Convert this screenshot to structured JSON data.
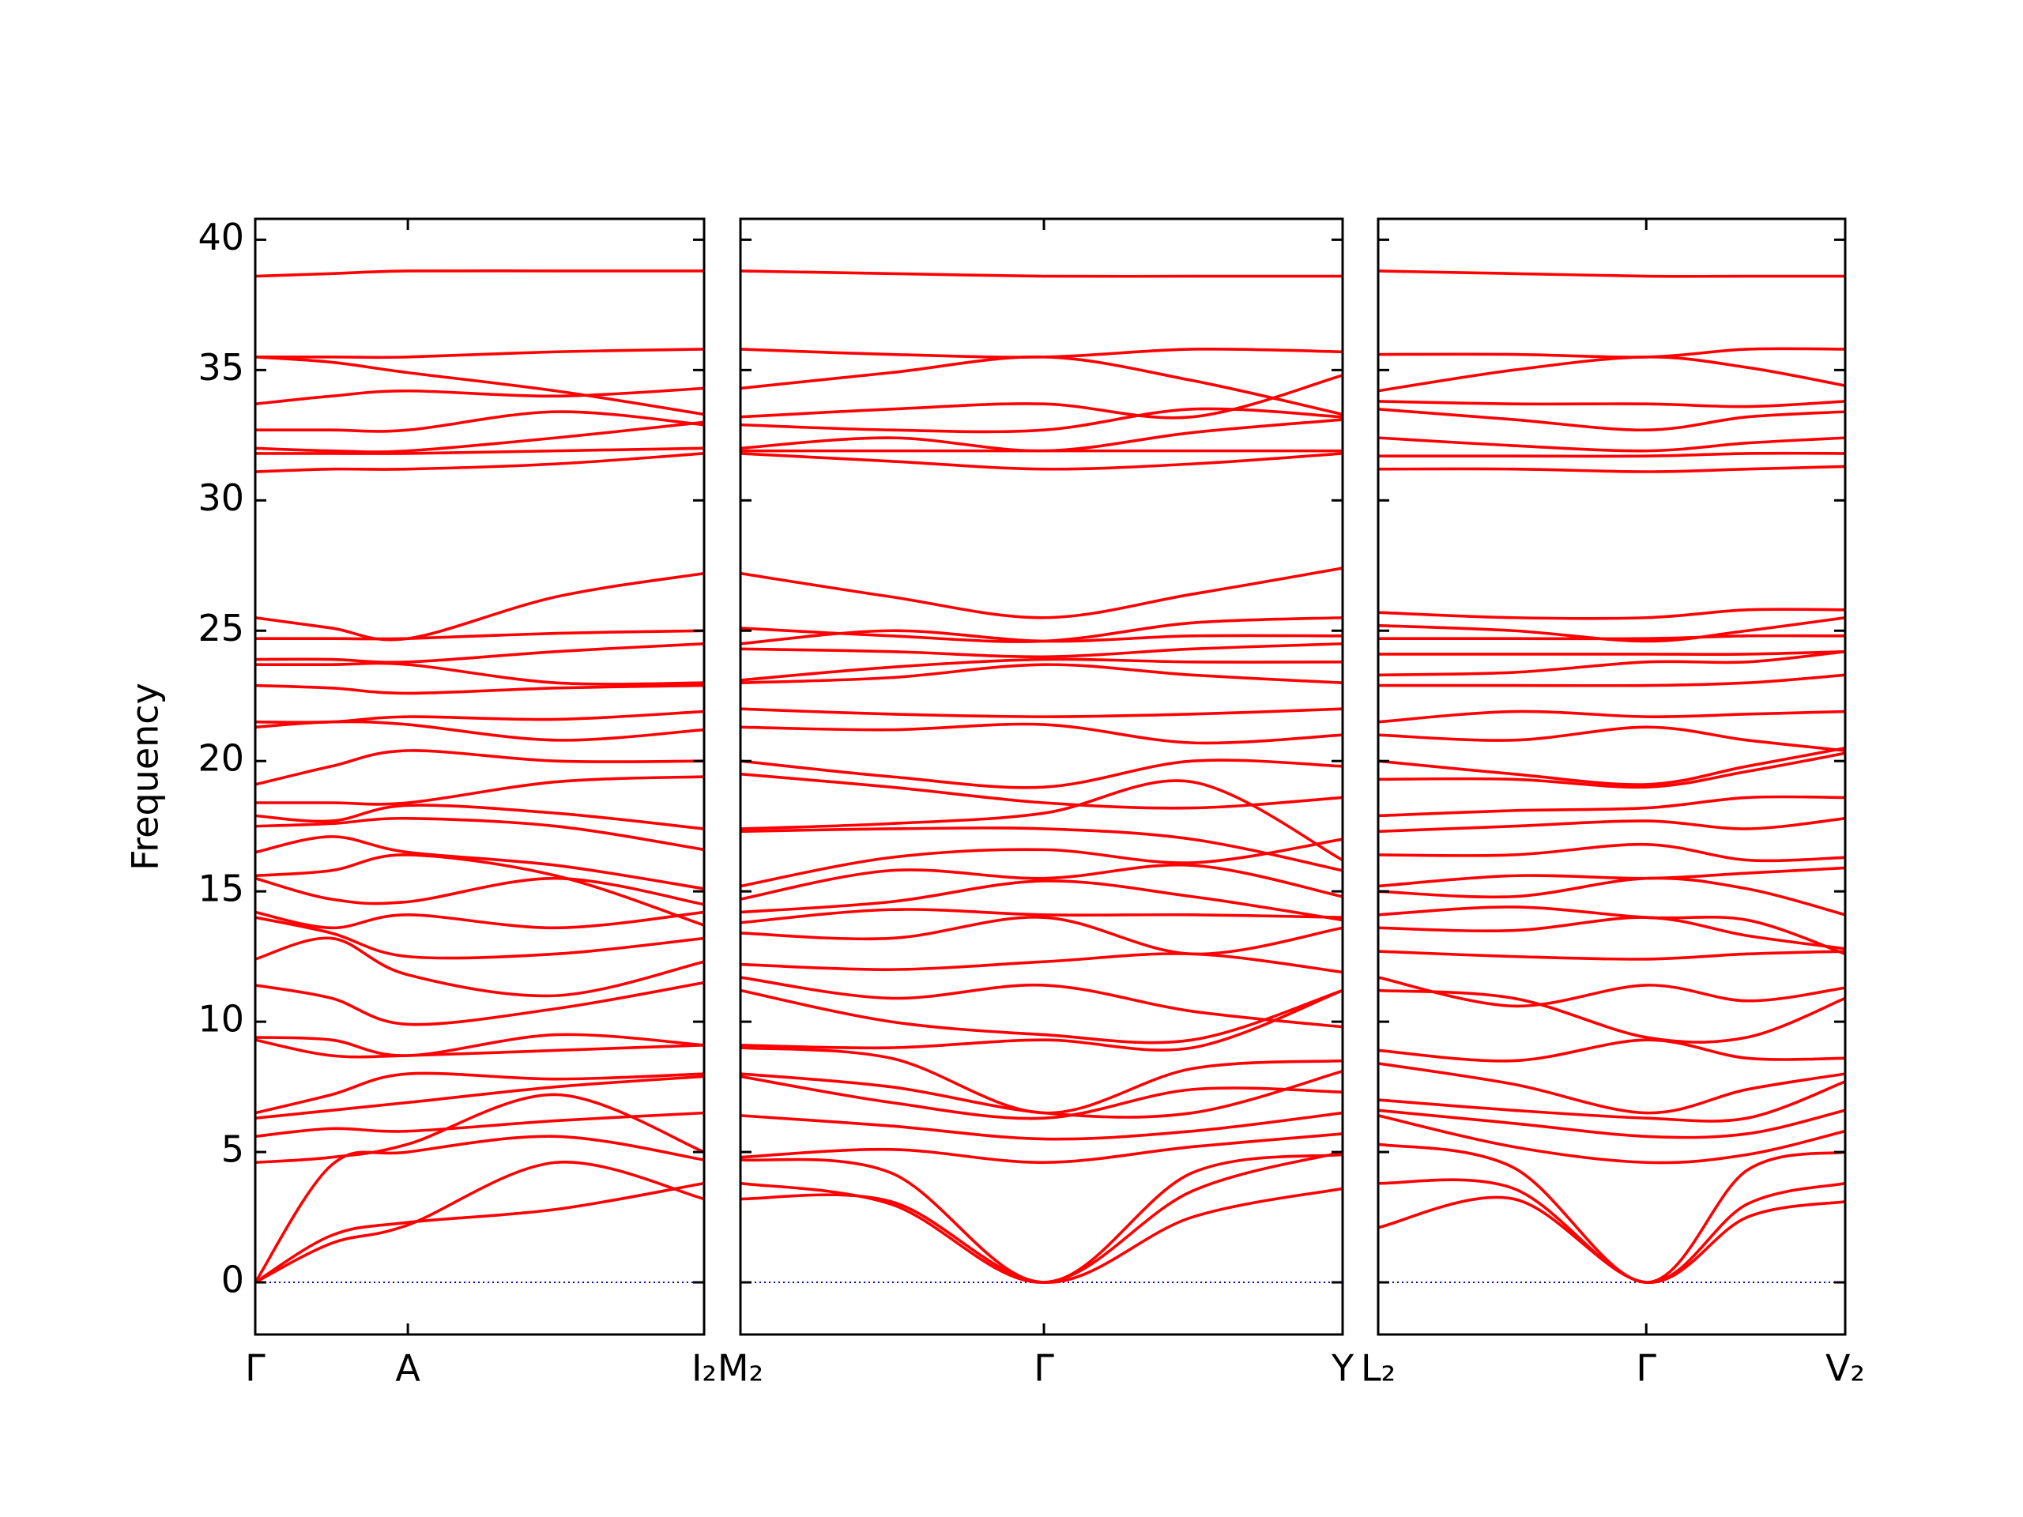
{
  "chart_data": [
    {
      "type": "line",
      "ylabel": "Frequency",
      "ytick_labels": true,
      "color": "#ff0000",
      "zero_line_color": "#0000cc",
      "xlim": [
        0,
        1
      ],
      "xticks": [
        {
          "value": 0,
          "label": "Γ"
        },
        {
          "value": 0.34,
          "label": "A"
        },
        {
          "value": 1,
          "label": "I₂"
        }
      ],
      "ylim": [
        -2,
        40.8
      ],
      "yticks": [
        0,
        5,
        10,
        15,
        20,
        25,
        30,
        35,
        40
      ],
      "x": [
        0,
        0.17,
        0.34,
        0.67,
        1
      ],
      "series": [
        {
          "values": [
            0,
            1.5,
            2.2,
            4.6,
            3.2
          ]
        },
        {
          "values": [
            0,
            1.8,
            2.3,
            2.8,
            3.8
          ]
        },
        {
          "values": [
            0,
            4.5,
            5.0,
            5.6,
            4.7
          ]
        },
        {
          "values": [
            4.6,
            4.8,
            5.3,
            7.2,
            5.0
          ]
        },
        {
          "values": [
            5.6,
            5.9,
            5.8,
            6.2,
            6.5
          ]
        },
        {
          "values": [
            6.3,
            6.6,
            6.9,
            7.5,
            7.9
          ]
        },
        {
          "values": [
            6.5,
            7.2,
            8.0,
            7.8,
            8.0
          ]
        },
        {
          "values": [
            9.3,
            8.7,
            8.7,
            8.9,
            9.1
          ]
        },
        {
          "values": [
            9.4,
            9.3,
            8.7,
            9.5,
            9.1
          ]
        },
        {
          "values": [
            11.4,
            10.9,
            9.9,
            10.5,
            11.5
          ]
        },
        {
          "values": [
            12.4,
            13.2,
            11.8,
            11.0,
            12.3
          ]
        },
        {
          "values": [
            14.0,
            13.4,
            12.5,
            12.6,
            13.2
          ]
        },
        {
          "values": [
            14.2,
            13.6,
            14.1,
            13.6,
            14.2
          ]
        },
        {
          "values": [
            15.5,
            14.7,
            14.6,
            15.5,
            14.5
          ]
        },
        {
          "values": [
            15.6,
            15.8,
            16.4,
            15.6,
            13.7
          ]
        },
        {
          "values": [
            16.5,
            17.1,
            16.5,
            16.0,
            15.1
          ]
        },
        {
          "values": [
            17.5,
            17.6,
            17.8,
            17.5,
            16.6
          ]
        },
        {
          "values": [
            17.9,
            17.7,
            18.3,
            18.0,
            17.4
          ]
        },
        {
          "values": [
            18.4,
            18.4,
            18.4,
            19.2,
            19.4
          ]
        },
        {
          "values": [
            19.1,
            19.8,
            20.4,
            20.0,
            20.0
          ]
        },
        {
          "values": [
            21.3,
            21.5,
            21.4,
            20.8,
            21.2
          ]
        },
        {
          "values": [
            21.5,
            21.5,
            21.7,
            21.6,
            21.9
          ]
        },
        {
          "values": [
            22.9,
            22.8,
            22.6,
            22.8,
            22.9
          ]
        },
        {
          "values": [
            23.7,
            23.7,
            23.7,
            23.0,
            23.0
          ]
        },
        {
          "values": [
            23.9,
            23.9,
            23.8,
            24.2,
            24.5
          ]
        },
        {
          "values": [
            24.7,
            24.7,
            24.7,
            24.9,
            25.0
          ]
        },
        {
          "values": [
            25.5,
            25.1,
            24.7,
            26.3,
            27.2
          ]
        },
        {
          "values": [
            31.1,
            31.2,
            31.2,
            31.4,
            31.8
          ]
        },
        {
          "values": [
            31.8,
            31.8,
            31.8,
            31.9,
            32.0
          ]
        },
        {
          "values": [
            32.0,
            31.9,
            31.9,
            32.4,
            33.0
          ]
        },
        {
          "values": [
            32.7,
            32.7,
            32.7,
            33.4,
            32.9
          ]
        },
        {
          "values": [
            33.7,
            34.0,
            34.2,
            34.0,
            34.3
          ]
        },
        {
          "values": [
            35.5,
            35.3,
            34.9,
            34.2,
            33.3
          ]
        },
        {
          "values": [
            35.5,
            35.5,
            35.5,
            35.7,
            35.8
          ]
        },
        {
          "values": [
            38.6,
            38.7,
            38.8,
            38.8,
            38.8
          ]
        }
      ]
    },
    {
      "type": "line",
      "ytick_labels": false,
      "color": "#ff0000",
      "zero_line_color": "#0000cc",
      "xlim": [
        0,
        1
      ],
      "xticks": [
        {
          "value": 0,
          "label": "M₂"
        },
        {
          "value": 0.504,
          "label": "Γ"
        },
        {
          "value": 1,
          "label": "Y"
        }
      ],
      "ylim": [
        -2,
        40.8
      ],
      "yticks": [
        0,
        5,
        10,
        15,
        20,
        25,
        30,
        35,
        40
      ],
      "x": [
        0,
        0.25,
        0.504,
        0.75,
        1
      ],
      "series": [
        {
          "values": [
            3.2,
            3.1,
            0,
            2.5,
            3.6
          ]
        },
        {
          "values": [
            3.8,
            3.0,
            0,
            3.5,
            5.0
          ]
        },
        {
          "values": [
            4.7,
            4.2,
            0,
            4.2,
            4.9
          ]
        },
        {
          "values": [
            4.8,
            5.1,
            4.6,
            5.2,
            5.7
          ]
        },
        {
          "values": [
            6.4,
            6.0,
            5.5,
            5.8,
            6.5
          ]
        },
        {
          "values": [
            7.9,
            6.9,
            6.3,
            7.4,
            7.3
          ]
        },
        {
          "values": [
            8.0,
            7.5,
            6.5,
            6.5,
            8.1
          ]
        },
        {
          "values": [
            9.0,
            8.6,
            6.5,
            8.2,
            8.5
          ]
        },
        {
          "values": [
            9.1,
            9.0,
            9.3,
            9.0,
            11.2
          ]
        },
        {
          "values": [
            11.2,
            10.0,
            9.5,
            9.3,
            11.2
          ]
        },
        {
          "values": [
            11.7,
            10.9,
            11.4,
            10.4,
            9.8
          ]
        },
        {
          "values": [
            12.2,
            12.0,
            12.3,
            12.6,
            11.9
          ]
        },
        {
          "values": [
            13.4,
            13.2,
            14.0,
            12.6,
            13.6
          ]
        },
        {
          "values": [
            13.8,
            14.3,
            14.1,
            14.1,
            14.0
          ]
        },
        {
          "values": [
            14.2,
            14.6,
            15.4,
            14.8,
            13.9
          ]
        },
        {
          "values": [
            14.7,
            15.8,
            15.5,
            16.0,
            14.8
          ]
        },
        {
          "values": [
            15.2,
            16.3,
            16.6,
            16.1,
            17.0
          ]
        },
        {
          "values": [
            17.3,
            17.4,
            17.4,
            17.0,
            15.8
          ]
        },
        {
          "values": [
            17.4,
            17.6,
            18.0,
            19.2,
            16.2
          ]
        },
        {
          "values": [
            19.5,
            19.0,
            18.4,
            18.2,
            18.6
          ]
        },
        {
          "values": [
            20.0,
            19.4,
            19.0,
            20.0,
            19.8
          ]
        },
        {
          "values": [
            21.3,
            21.2,
            21.4,
            20.7,
            21.0
          ]
        },
        {
          "values": [
            22.0,
            21.8,
            21.7,
            21.8,
            22.0
          ]
        },
        {
          "values": [
            23.0,
            23.2,
            23.7,
            23.3,
            23.0
          ]
        },
        {
          "values": [
            23.1,
            23.6,
            23.9,
            23.8,
            23.8
          ]
        },
        {
          "values": [
            24.3,
            24.2,
            24.0,
            24.3,
            24.5
          ]
        },
        {
          "values": [
            24.5,
            25.0,
            24.6,
            24.8,
            24.8
          ]
        },
        {
          "values": [
            25.1,
            24.8,
            24.6,
            25.3,
            25.5
          ]
        },
        {
          "values": [
            27.2,
            26.3,
            25.5,
            26.4,
            27.4
          ]
        },
        {
          "values": [
            31.8,
            31.5,
            31.2,
            31.4,
            31.8
          ]
        },
        {
          "values": [
            31.9,
            31.9,
            31.9,
            31.9,
            31.9
          ]
        },
        {
          "values": [
            32.0,
            32.4,
            31.9,
            32.6,
            33.1
          ]
        },
        {
          "values": [
            32.9,
            32.7,
            32.7,
            33.5,
            33.2
          ]
        },
        {
          "values": [
            33.2,
            33.5,
            33.7,
            33.2,
            34.8
          ]
        },
        {
          "values": [
            34.3,
            34.9,
            35.5,
            34.6,
            33.3
          ]
        },
        {
          "values": [
            35.8,
            35.6,
            35.5,
            35.8,
            35.7
          ]
        },
        {
          "values": [
            38.8,
            38.7,
            38.6,
            38.6,
            38.6
          ]
        }
      ]
    },
    {
      "type": "line",
      "ytick_labels": false,
      "color": "#ff0000",
      "zero_line_color": "#0000cc",
      "xlim": [
        0,
        1
      ],
      "xticks": [
        {
          "value": 0,
          "label": "L₂"
        },
        {
          "value": 0.574,
          "label": "Γ"
        },
        {
          "value": 1,
          "label": "V₂"
        }
      ],
      "ylim": [
        -2,
        40.8
      ],
      "yticks": [
        0,
        5,
        10,
        15,
        20,
        25,
        30,
        35,
        40
      ],
      "x": [
        0,
        0.29,
        0.574,
        0.79,
        1
      ],
      "series": [
        {
          "values": [
            2.1,
            3.2,
            0,
            2.5,
            3.1
          ]
        },
        {
          "values": [
            3.8,
            3.6,
            0,
            3.0,
            3.8
          ]
        },
        {
          "values": [
            5.3,
            4.4,
            0,
            4.3,
            5.0
          ]
        },
        {
          "values": [
            6.4,
            5.2,
            4.6,
            4.9,
            5.8
          ]
        },
        {
          "values": [
            6.6,
            6.1,
            5.6,
            5.7,
            6.6
          ]
        },
        {
          "values": [
            7.0,
            6.6,
            6.3,
            6.3,
            7.7
          ]
        },
        {
          "values": [
            8.4,
            7.6,
            6.5,
            7.4,
            8.0
          ]
        },
        {
          "values": [
            8.9,
            8.5,
            9.3,
            8.6,
            8.6
          ]
        },
        {
          "values": [
            11.2,
            10.9,
            9.4,
            9.4,
            10.9
          ]
        },
        {
          "values": [
            11.7,
            10.6,
            11.4,
            10.8,
            11.3
          ]
        },
        {
          "values": [
            12.7,
            12.5,
            12.4,
            12.6,
            12.7
          ]
        },
        {
          "values": [
            13.6,
            13.5,
            14.0,
            13.3,
            12.8
          ]
        },
        {
          "values": [
            14.1,
            14.4,
            14.0,
            13.9,
            12.6
          ]
        },
        {
          "values": [
            15.0,
            14.8,
            15.5,
            15.1,
            14.1
          ]
        },
        {
          "values": [
            15.2,
            15.6,
            15.5,
            15.7,
            15.9
          ]
        },
        {
          "values": [
            16.4,
            16.4,
            16.8,
            16.2,
            16.3
          ]
        },
        {
          "values": [
            17.3,
            17.5,
            17.7,
            17.4,
            17.8
          ]
        },
        {
          "values": [
            17.9,
            18.1,
            18.2,
            18.6,
            18.6
          ]
        },
        {
          "values": [
            19.3,
            19.3,
            19.0,
            19.6,
            20.3
          ]
        },
        {
          "values": [
            20.0,
            19.5,
            19.1,
            19.8,
            20.5
          ]
        },
        {
          "values": [
            21.0,
            20.8,
            21.3,
            20.8,
            20.4
          ]
        },
        {
          "values": [
            21.5,
            21.9,
            21.7,
            21.8,
            21.9
          ]
        },
        {
          "values": [
            22.9,
            22.9,
            22.9,
            23.0,
            23.3
          ]
        },
        {
          "values": [
            23.3,
            23.4,
            23.8,
            23.8,
            24.2
          ]
        },
        {
          "values": [
            24.1,
            24.1,
            24.1,
            24.1,
            24.2
          ]
        },
        {
          "values": [
            24.7,
            24.7,
            24.7,
            24.8,
            24.8
          ]
        },
        {
          "values": [
            25.2,
            25.0,
            24.6,
            25.0,
            25.5
          ]
        },
        {
          "values": [
            25.7,
            25.5,
            25.5,
            25.8,
            25.8
          ]
        },
        {
          "values": [
            31.2,
            31.2,
            31.1,
            31.2,
            31.3
          ]
        },
        {
          "values": [
            31.7,
            31.7,
            31.7,
            31.8,
            31.8
          ]
        },
        {
          "values": [
            32.4,
            32.1,
            31.9,
            32.2,
            32.4
          ]
        },
        {
          "values": [
            33.5,
            33.1,
            32.7,
            33.2,
            33.4
          ]
        },
        {
          "values": [
            33.8,
            33.7,
            33.7,
            33.6,
            33.8
          ]
        },
        {
          "values": [
            34.2,
            35.0,
            35.5,
            35.1,
            34.4
          ]
        },
        {
          "values": [
            35.6,
            35.6,
            35.5,
            35.8,
            35.8
          ]
        },
        {
          "values": [
            38.8,
            38.7,
            38.6,
            38.6,
            38.6
          ]
        }
      ]
    }
  ]
}
